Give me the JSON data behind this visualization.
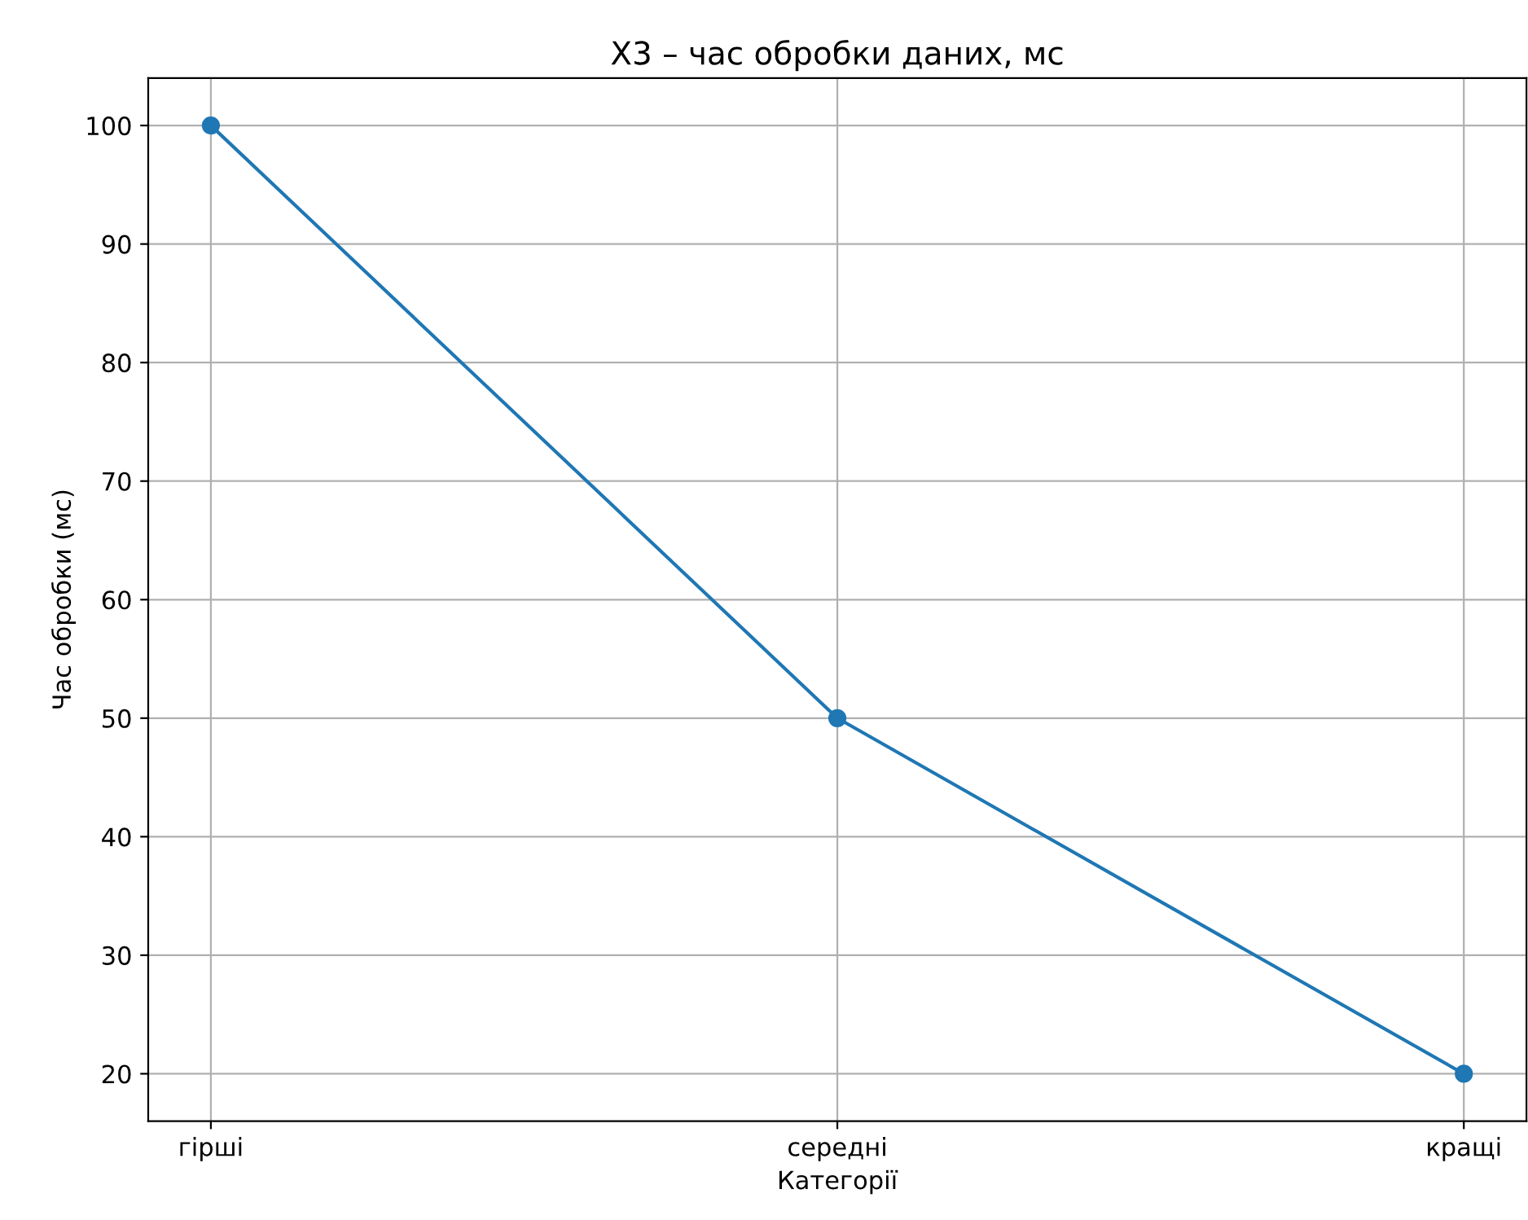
{
  "chart_data": {
    "type": "line",
    "title": "X3 – час обробки даних, мс",
    "xlabel": "Категорії",
    "ylabel": "Час обробки (мс)",
    "categories": [
      "гірші",
      "середні",
      "кращі"
    ],
    "series": [
      {
        "color": "#1f77b4",
        "values": [
          100,
          50,
          20
        ]
      }
    ],
    "ylim": [
      16,
      104
    ],
    "yticks": [
      20,
      30,
      40,
      50,
      60,
      70,
      80,
      90,
      100
    ],
    "grid": true,
    "marker": "circle",
    "line_style": "solid",
    "legend": false
  }
}
